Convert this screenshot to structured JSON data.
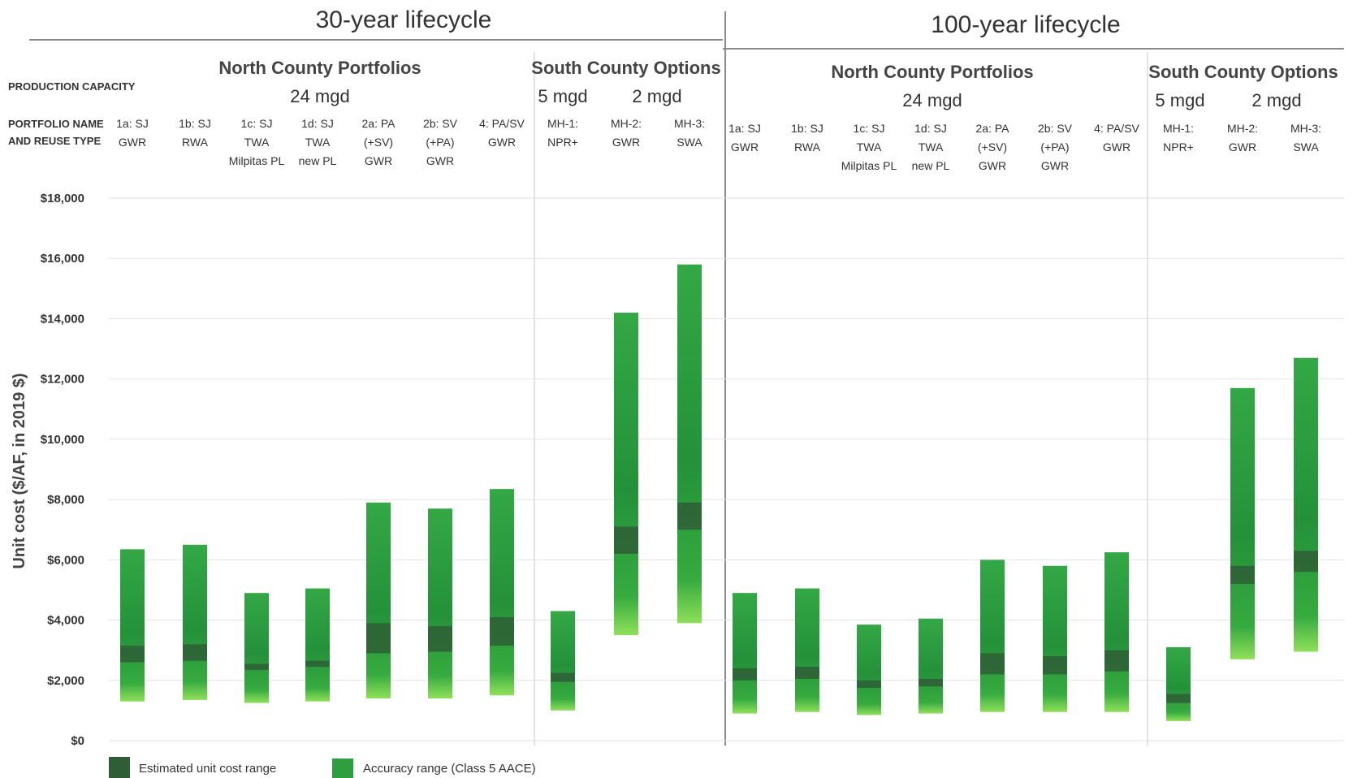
{
  "header": {
    "row_label_capacity": "PRODUCTION CAPACITY",
    "row_label_portfolio": [
      "PORTFOLIO NAME",
      "AND REUSE TYPE"
    ]
  },
  "legend": {
    "estimated": "Estimated unit cost range",
    "accuracy": "Accuracy range (Class 5 AACE)"
  },
  "colors": {
    "accuracy": "#2e9e3e",
    "accuracy_light": "#7ed957",
    "estimated": "#2f5e36"
  },
  "chart_data": {
    "type": "bar",
    "ylabel": "Unit cost ($/AF, in 2019 $)",
    "ylim": [
      0,
      18000
    ],
    "yticks": [
      0,
      2000,
      4000,
      6000,
      8000,
      10000,
      12000,
      14000,
      16000,
      18000
    ],
    "ytick_labels": [
      "$0",
      "$2,000",
      "$4,000",
      "$6,000",
      "$8,000",
      "$10,000",
      "$12,000",
      "$14,000",
      "$16,000",
      "$18,000"
    ],
    "panels": [
      {
        "title": "30-year lifecycle",
        "groups": [
          {
            "title": "North County Portfolios",
            "capacities": [
              "24 mgd"
            ]
          },
          {
            "title": "South County Options",
            "capacities": [
              "5 mgd",
              "2 mgd"
            ]
          }
        ],
        "categories": [
          [
            "1a: SJ",
            "GWR"
          ],
          [
            "1b: SJ",
            "RWA"
          ],
          [
            "1c: SJ",
            "TWA",
            "Milpitas PL"
          ],
          [
            "1d: SJ",
            "TWA",
            "new PL"
          ],
          [
            "2a: PA",
            "(+SV)",
            "GWR"
          ],
          [
            "2b: SV",
            "(+PA)",
            "GWR"
          ],
          [
            "4: PA/SV",
            "GWR"
          ],
          [
            "MH-1:",
            "NPR+"
          ],
          [
            "MH-2:",
            "GWR"
          ],
          [
            "MH-3:",
            "SWA"
          ]
        ],
        "accuracy_low": [
          1300,
          1350,
          1250,
          1300,
          1400,
          1400,
          1500,
          1000,
          3500,
          3900
        ],
        "accuracy_high": [
          6350,
          6500,
          4900,
          5050,
          7900,
          7700,
          8350,
          4300,
          14200,
          15800
        ],
        "estimated_low": [
          2600,
          2650,
          2350,
          2450,
          2900,
          2950,
          3150,
          1950,
          6200,
          7000
        ],
        "estimated_high": [
          3150,
          3200,
          2550,
          2650,
          3900,
          3800,
          4100,
          2250,
          7100,
          7900
        ]
      },
      {
        "title": "100-year lifecycle",
        "groups": [
          {
            "title": "North County Portfolios",
            "capacities": [
              "24 mgd"
            ]
          },
          {
            "title": "South County Options",
            "capacities": [
              "5 mgd",
              "2 mgd"
            ]
          }
        ],
        "categories": [
          [
            "1a: SJ",
            "GWR"
          ],
          [
            "1b: SJ",
            "RWA"
          ],
          [
            "1c: SJ",
            "TWA",
            "Milpitas PL"
          ],
          [
            "1d: SJ",
            "TWA",
            "new PL"
          ],
          [
            "2a: PA",
            "(+SV)",
            "GWR"
          ],
          [
            "2b: SV",
            "(+PA)",
            "GWR"
          ],
          [
            "4: PA/SV",
            "GWR"
          ],
          [
            "MH-1:",
            "NPR+"
          ],
          [
            "MH-2:",
            "GWR"
          ],
          [
            "MH-3:",
            "SWA"
          ]
        ],
        "accuracy_low": [
          900,
          950,
          850,
          900,
          950,
          950,
          950,
          650,
          2700,
          2950
        ],
        "accuracy_high": [
          4900,
          5050,
          3850,
          4050,
          6000,
          5800,
          6250,
          3100,
          11700,
          12700
        ],
        "estimated_low": [
          2000,
          2050,
          1750,
          1800,
          2200,
          2200,
          2300,
          1250,
          5200,
          5600
        ],
        "estimated_high": [
          2400,
          2450,
          2000,
          2050,
          2900,
          2800,
          3000,
          1550,
          5800,
          6300
        ]
      }
    ]
  }
}
